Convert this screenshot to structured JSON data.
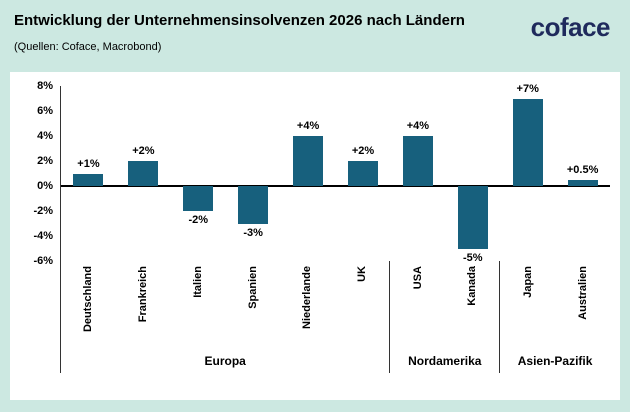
{
  "header": {
    "title": "Entwicklung der Unternehmensinsolvenzen 2026 nach Ländern",
    "source": "(Quellen: Coface, Macrobond)",
    "logo_text": "coface"
  },
  "colors": {
    "background": "#cce8e1",
    "panel": "#ffffff",
    "bar": "#17607d",
    "logo_navy": "#1f2a5c",
    "axis_line": "#333333",
    "zero_line": "#000000",
    "text": "#000000"
  },
  "chart_data": {
    "type": "bar",
    "title": "Entwicklung der Unternehmensinsolvenzen 2026 nach Ländern",
    "categories": [
      "Deutschland",
      "Frankreich",
      "Italien",
      "Spanien",
      "Niederlande",
      "UK",
      "USA",
      "Kanada",
      "Japan",
      "Australien"
    ],
    "values": [
      1,
      2,
      -2,
      -3,
      4,
      2,
      4,
      -5,
      7,
      0.5
    ],
    "value_labels": [
      "+1%",
      "+2%",
      "-2%",
      "-3%",
      "+4%",
      "+2%",
      "+4%",
      "-5%",
      "+7%",
      "+0.5%"
    ],
    "groups": [
      {
        "label": "Europa",
        "categories_count": 6
      },
      {
        "label": "Nordamerika",
        "categories_count": 2
      },
      {
        "label": "Asien-Pazifik",
        "categories_count": 2
      }
    ],
    "y_ticks": [
      {
        "value": 8,
        "label": "8%"
      },
      {
        "value": 6,
        "label": "6%"
      },
      {
        "value": 4,
        "label": "4%"
      },
      {
        "value": 2,
        "label": "2%"
      },
      {
        "value": 0,
        "label": "0%"
      },
      {
        "value": -2,
        "label": "-2%"
      },
      {
        "value": -4,
        "label": "-4%"
      },
      {
        "value": -6,
        "label": "-6%"
      }
    ],
    "ylim": [
      -6,
      8
    ],
    "xlabel": "",
    "ylabel": "",
    "grid": false,
    "legend_position": "none"
  }
}
